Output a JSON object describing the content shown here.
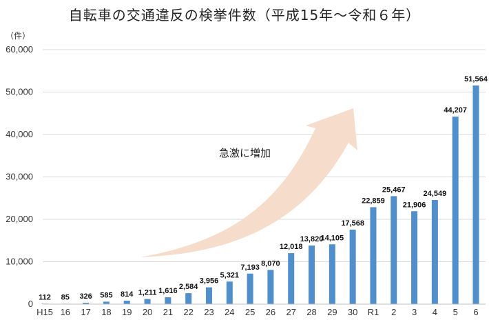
{
  "chart_data": {
    "type": "bar",
    "title": "自転車の交通違反の検挙件数（平成15年～令和６年）",
    "y_unit": "（件）",
    "annotation": "急激に増加",
    "categories": [
      "H15",
      "16",
      "17",
      "18",
      "19",
      "20",
      "21",
      "22",
      "23",
      "24",
      "25",
      "26",
      "27",
      "28",
      "29",
      "30",
      "R1",
      "2",
      "3",
      "4",
      "5",
      "6"
    ],
    "values": [
      112,
      85,
      326,
      585,
      814,
      1211,
      1616,
      2584,
      3956,
      5321,
      7193,
      8070,
      12018,
      13820,
      14105,
      17568,
      22859,
      25467,
      21906,
      24549,
      44207,
      51564
    ],
    "data_labels": [
      "112",
      "85",
      "326",
      "585",
      "814",
      "1,211",
      "1,616",
      "2,584",
      "3,956",
      "5,321",
      "7,193",
      "8,070",
      "12,018",
      "13,820",
      "14,105",
      "17,568",
      "22,859",
      "25,467",
      "21,906",
      "24,549",
      "44,207",
      "51,564"
    ],
    "ylim": [
      0,
      60000
    ],
    "yticks": [
      0,
      10000,
      20000,
      30000,
      40000,
      50000,
      60000
    ],
    "ytick_labels": [
      "0",
      "10,000",
      "20,000",
      "30,000",
      "40,000",
      "50,000",
      "60,000"
    ],
    "grid": true,
    "bar_color": "#4f8fcd",
    "arrow_color": "#f6dccb"
  }
}
